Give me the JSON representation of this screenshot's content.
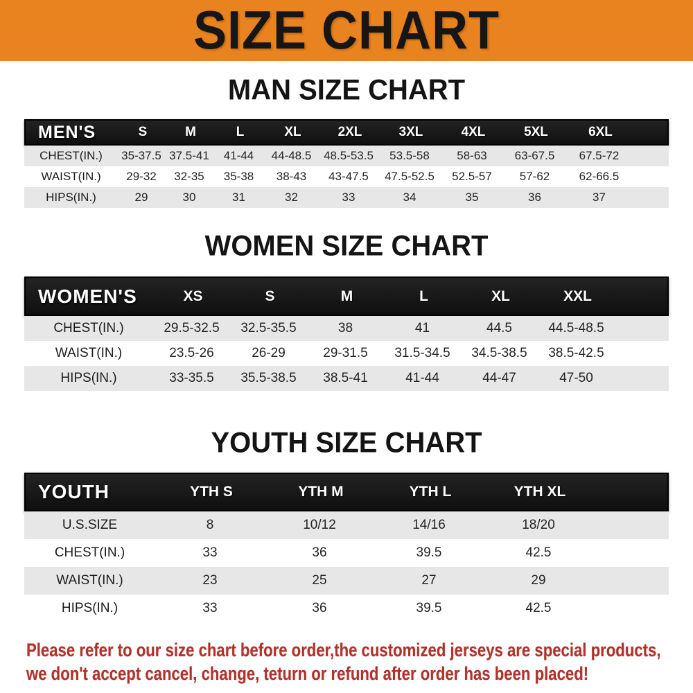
{
  "banner": {
    "title": "SIZE CHART"
  },
  "sections": [
    {
      "id": "men",
      "heading": "MAN SIZE CHART",
      "label": "MEN'S",
      "columns": [
        "S",
        "M",
        "L",
        "XL",
        "2XL",
        "3XL",
        "4XL",
        "5XL",
        "6XL"
      ],
      "rows": [
        {
          "label": "CHEST(IN.)",
          "values": [
            "35-37.5",
            "37.5-41",
            "41-44",
            "44-48.5",
            "48.5-53.5",
            "53.5-58",
            "58-63",
            "63-67.5",
            "67.5-72"
          ]
        },
        {
          "label": "WAIST(IN.)",
          "values": [
            "29-32",
            "32-35",
            "35-38",
            "38-43",
            "43-47.5",
            "47.5-52.5",
            "52.5-57",
            "57-62",
            "62-66.5"
          ]
        },
        {
          "label": "HIPS(IN.)",
          "values": [
            "29",
            "30",
            "31",
            "32",
            "33",
            "34",
            "35",
            "36",
            "37"
          ]
        }
      ]
    },
    {
      "id": "women",
      "heading": "WOMEN SIZE CHART",
      "label": "WOMEN'S",
      "columns": [
        "XS",
        "S",
        "M",
        "L",
        "XL",
        "XXL"
      ],
      "rows": [
        {
          "label": "CHEST(IN.)",
          "values": [
            "29.5-32.5",
            "32.5-35.5",
            "38",
            "41",
            "44.5",
            "44.5-48.5"
          ]
        },
        {
          "label": "WAIST(IN.)",
          "values": [
            "23.5-26",
            "26-29",
            "29-31.5",
            "31.5-34.5",
            "34.5-38.5",
            "38.5-42.5"
          ]
        },
        {
          "label": "HIPS(IN.)",
          "values": [
            "33-35.5",
            "35.5-38.5",
            "38.5-41",
            "41-44",
            "44-47",
            "47-50"
          ]
        }
      ]
    },
    {
      "id": "youth",
      "heading": "YOUTH SIZE CHART",
      "label": "YOUTH",
      "columns": [
        "YTH S",
        "YTH M",
        "YTH L",
        "YTH XL"
      ],
      "rows": [
        {
          "label": "U.S.SIZE",
          "values": [
            "8",
            "10/12",
            "14/16",
            "18/20"
          ]
        },
        {
          "label": "CHEST(IN.)",
          "values": [
            "33",
            "36",
            "39.5",
            "42.5"
          ]
        },
        {
          "label": "WAIST(IN.)",
          "values": [
            "23",
            "25",
            "27",
            "29"
          ]
        },
        {
          "label": "HIPS(IN.)",
          "values": [
            "33",
            "36",
            "39.5",
            "42.5"
          ]
        }
      ]
    }
  ],
  "disclaimer": {
    "line1": "Please refer to our size chart before order,the customized jerseys are special products,",
    "line2": "we don't accept cancel, change, teturn or refund after order has been placed!"
  },
  "colors": {
    "banner_bg": "#e8831f",
    "banner_text": "#161616",
    "table_header_bg": "#141414",
    "table_header_text": "#ffffff",
    "row_shade": "#e7e7e7",
    "body_text": "#252525",
    "disclaimer_text": "#b2322b"
  }
}
